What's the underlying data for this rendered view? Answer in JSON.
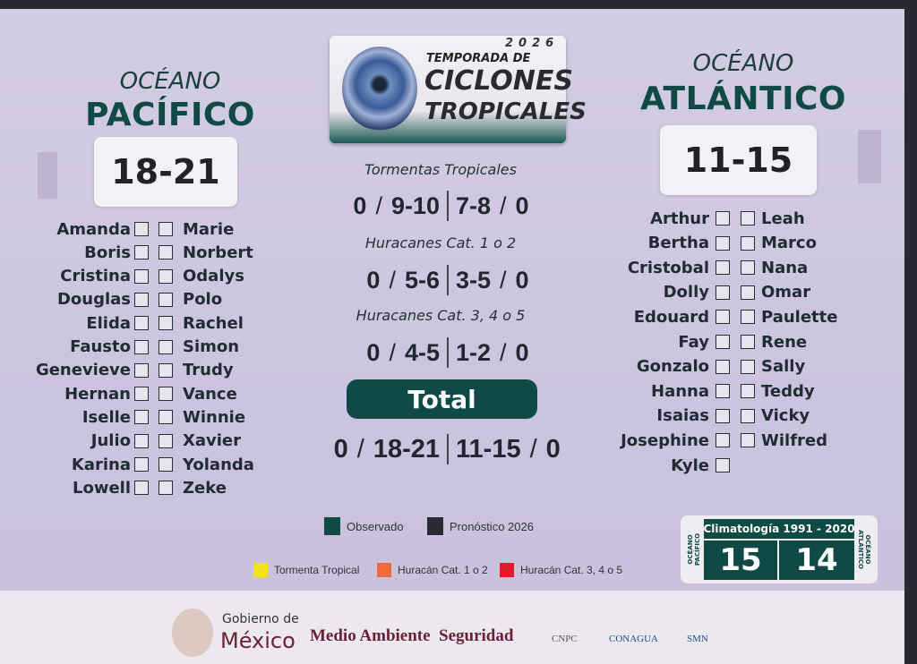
{
  "header": {
    "season_label": "TEMPORADA DE",
    "year": "2026",
    "title_line1": "CICLONES",
    "title_line2": "TROPICALES"
  },
  "pacific": {
    "ocean_label": "OCÉANO",
    "name": "PACÍFICO",
    "forecast": "18-21",
    "names_left": [
      "Amanda",
      "Boris",
      "Cristina",
      "Douglas",
      "Elida",
      "Fausto",
      "Genevieve",
      "Hernan",
      "Iselle",
      "Julio",
      "Karina",
      "Lowell"
    ],
    "names_right": [
      "Marie",
      "Norbert",
      "Odalys",
      "Polo",
      "Rachel",
      "Simon",
      "Trudy",
      "Vance",
      "Winnie",
      "Xavier",
      "Yolanda",
      "Zeke"
    ]
  },
  "atlantic": {
    "ocean_label": "OCÉANO",
    "name": "ATLÁNTICO",
    "forecast": "11-15",
    "names_left": [
      "Arthur",
      "Bertha",
      "Cristobal",
      "Dolly",
      "Edouard",
      "Fay",
      "Gonzalo",
      "Hanna",
      "Isaias",
      "Josephine",
      "Kyle"
    ],
    "names_right": [
      "Leah",
      "Marco",
      "Nana",
      "Omar",
      "Paulette",
      "Rene",
      "Sally",
      "Teddy",
      "Vicky",
      "Wilfred"
    ]
  },
  "summary": {
    "rows": [
      {
        "label": "Tormentas Tropicales",
        "pac_observed": "0",
        "pac_forecast": "9-10",
        "atl_forecast": "7-8",
        "atl_observed": "0"
      },
      {
        "label": "Huracanes Cat. 1 o 2",
        "pac_observed": "0",
        "pac_forecast": "5-6",
        "atl_forecast": "3-5",
        "atl_observed": "0"
      },
      {
        "label": "Huracanes Cat. 3, 4 o 5",
        "pac_observed": "0",
        "pac_forecast": "4-5",
        "atl_forecast": "1-2",
        "atl_observed": "0"
      }
    ],
    "total_label": "Total",
    "total": {
      "pac_observed": "0",
      "pac_forecast": "18-21",
      "atl_forecast": "11-15",
      "atl_observed": "0"
    }
  },
  "legend": {
    "observed": "Observado",
    "forecast": "Pronóstico 2026",
    "tropical_storm": "Tormenta Tropical",
    "hurricane_12": "Huracán Cat. 1 o 2",
    "hurricane_345": "Huracán Cat. 3, 4 o 5",
    "colors": {
      "observed": "#0f4a46",
      "forecast": "#2a2a33",
      "tropical_storm": "#f2e21a",
      "hurricane_12": "#f26a3a",
      "hurricane_345": "#e21c2a"
    }
  },
  "climatology": {
    "title": "Climatología 1991 - 2020",
    "pacific_label": "OCÉANO PACÍFICO",
    "atlantic_label": "OCÉANO ATLÁNTICO",
    "pacific": "15",
    "atlantic": "14"
  },
  "footer": {
    "gob1": "Gobierno de",
    "gob2": "México",
    "medio": "Medio Ambiente",
    "seguridad": "Seguridad",
    "cnpc": "CNPC",
    "conagua": "CONAGUA",
    "smn": "SMN"
  }
}
